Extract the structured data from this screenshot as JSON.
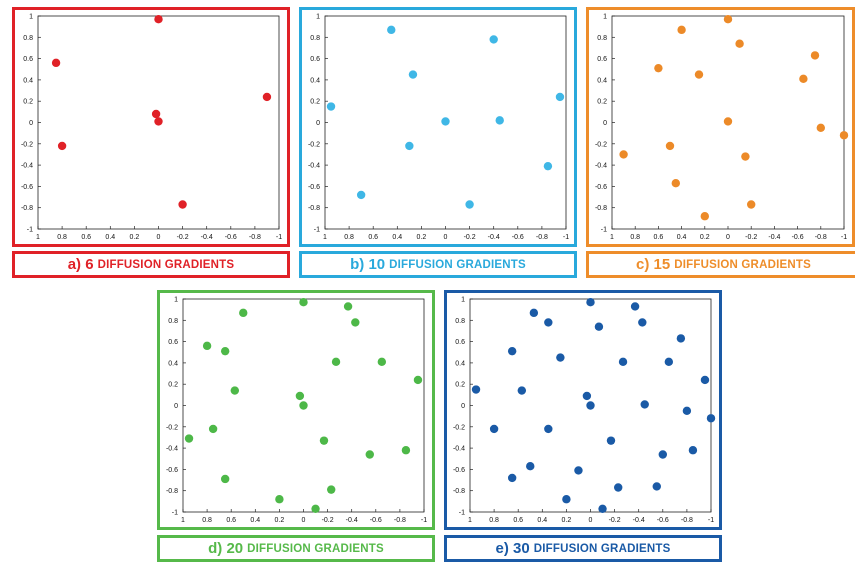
{
  "chart_data": [
    {
      "type": "scatter",
      "caption_prefix": "a) 6",
      "caption_suffix": "DIFFUSION GRADIENTS",
      "color": "#e02127",
      "frame_color": "#e02127",
      "caption_color": "#e02127",
      "x_ticks": [
        "1",
        "0.8",
        "0.6",
        "0.4",
        "0.2",
        "0",
        "-0.2",
        "-0.4",
        "-0.6",
        "-0.8",
        "-1"
      ],
      "y_ticks": [
        "1",
        "0.8",
        "0.6",
        "0.4",
        "0.2",
        "0",
        "-0.2",
        "-0.4",
        "-0.6",
        "-0.8",
        "-1"
      ],
      "xlim": [
        1,
        -1
      ],
      "ylim": [
        -1,
        1
      ],
      "points": [
        {
          "x": 0.0,
          "y": 0.97
        },
        {
          "x": 0.85,
          "y": 0.56
        },
        {
          "x": -0.9,
          "y": 0.24
        },
        {
          "x": 0.02,
          "y": 0.08
        },
        {
          "x": 0.0,
          "y": 0.01
        },
        {
          "x": 0.8,
          "y": -0.22
        },
        {
          "x": -0.2,
          "y": -0.77
        }
      ]
    },
    {
      "type": "scatter",
      "caption_prefix": "b) 10",
      "caption_suffix": "DIFFUSION GRADIENTS",
      "color": "#3fb7e6",
      "frame_color": "#29a9dc",
      "caption_color": "#29a9dc",
      "x_ticks": [
        "1",
        "0.8",
        "0.6",
        "0.4",
        "0.2",
        "0",
        "-0.2",
        "-0.4",
        "-0.6",
        "-0.8",
        "-1"
      ],
      "y_ticks": [
        "1",
        "0.8",
        "0.6",
        "0.4",
        "0.2",
        "0",
        "-0.2",
        "-0.4",
        "-0.6",
        "-0.8",
        "-1"
      ],
      "xlim": [
        1,
        -1
      ],
      "ylim": [
        -1,
        1
      ],
      "points": [
        {
          "x": 0.45,
          "y": 0.87
        },
        {
          "x": -0.4,
          "y": 0.78
        },
        {
          "x": 0.27,
          "y": 0.45
        },
        {
          "x": -0.95,
          "y": 0.24
        },
        {
          "x": 0.95,
          "y": 0.15
        },
        {
          "x": 0.0,
          "y": 0.01
        },
        {
          "x": -0.45,
          "y": 0.02
        },
        {
          "x": 0.3,
          "y": -0.22
        },
        {
          "x": -0.85,
          "y": -0.41
        },
        {
          "x": 0.7,
          "y": -0.68
        },
        {
          "x": -0.2,
          "y": -0.77
        }
      ]
    },
    {
      "type": "scatter",
      "caption_prefix": "c) 15",
      "caption_suffix": "DIFFUSION GRADIENTS",
      "color": "#ec8a28",
      "frame_color": "#ee8d2a",
      "caption_color": "#ee8d2a",
      "x_ticks": [
        "1",
        "0.8",
        "0.6",
        "0.4",
        "0.2",
        "0",
        "-0.2",
        "-0.4",
        "-0.6",
        "-0.8",
        "-1"
      ],
      "y_ticks": [
        "1",
        "0.8",
        "0.6",
        "0.4",
        "0.2",
        "0",
        "-0.2",
        "-0.4",
        "-0.6",
        "-0.8",
        "-1"
      ],
      "xlim": [
        1,
        -1
      ],
      "ylim": [
        -1,
        1
      ],
      "points": [
        {
          "x": 0.0,
          "y": 0.97
        },
        {
          "x": 0.4,
          "y": 0.87
        },
        {
          "x": -0.1,
          "y": 0.74
        },
        {
          "x": -0.75,
          "y": 0.63
        },
        {
          "x": 0.6,
          "y": 0.51
        },
        {
          "x": 0.25,
          "y": 0.45
        },
        {
          "x": -0.65,
          "y": 0.41
        },
        {
          "x": 0.0,
          "y": 0.01
        },
        {
          "x": -0.8,
          "y": -0.05
        },
        {
          "x": -1.0,
          "y": -0.12
        },
        {
          "x": 0.9,
          "y": -0.3
        },
        {
          "x": 0.5,
          "y": -0.22
        },
        {
          "x": -0.15,
          "y": -0.32
        },
        {
          "x": 0.45,
          "y": -0.57
        },
        {
          "x": -0.2,
          "y": -0.77
        },
        {
          "x": 0.2,
          "y": -0.88
        }
      ]
    },
    {
      "type": "scatter",
      "caption_prefix": "d) 20",
      "caption_suffix": "DIFFUSION GRADIENTS",
      "color": "#4db848",
      "frame_color": "#56b94a",
      "caption_color": "#56b94a",
      "x_ticks": [
        "1",
        "0.8",
        "0.6",
        "0.4",
        "0.2",
        "0",
        "-0.2",
        "-0.4",
        "-0.6",
        "-0.8",
        "-1"
      ],
      "y_ticks": [
        "1",
        "0.8",
        "0.6",
        "0.4",
        "0.2",
        "0",
        "-0.2",
        "-0.4",
        "-0.6",
        "-0.8",
        "-1"
      ],
      "xlim": [
        1,
        -1
      ],
      "ylim": [
        -1,
        1
      ],
      "points": [
        {
          "x": 0.0,
          "y": 0.97
        },
        {
          "x": -0.37,
          "y": 0.93
        },
        {
          "x": 0.5,
          "y": 0.87
        },
        {
          "x": -0.43,
          "y": 0.78
        },
        {
          "x": 0.8,
          "y": 0.56
        },
        {
          "x": 0.65,
          "y": 0.51
        },
        {
          "x": -0.27,
          "y": 0.41
        },
        {
          "x": -0.65,
          "y": 0.41
        },
        {
          "x": -0.95,
          "y": 0.24
        },
        {
          "x": 0.57,
          "y": 0.14
        },
        {
          "x": 0.03,
          "y": 0.09
        },
        {
          "x": 0.0,
          "y": 0.0
        },
        {
          "x": 0.95,
          "y": -0.31
        },
        {
          "x": 0.75,
          "y": -0.22
        },
        {
          "x": -0.17,
          "y": -0.33
        },
        {
          "x": -0.55,
          "y": -0.46
        },
        {
          "x": -0.85,
          "y": -0.42
        },
        {
          "x": 0.65,
          "y": -0.69
        },
        {
          "x": -0.23,
          "y": -0.79
        },
        {
          "x": 0.2,
          "y": -0.88
        },
        {
          "x": -0.1,
          "y": -0.97
        }
      ]
    },
    {
      "type": "scatter",
      "caption_prefix": "e) 30",
      "caption_suffix": "DIFFUSION GRADIENTS",
      "color": "#1a5aa6",
      "frame_color": "#1a5aa6",
      "caption_color": "#1a5aa6",
      "x_ticks": [
        "1",
        "0.8",
        "0.6",
        "0.4",
        "0.2",
        "0",
        "-0.2",
        "-0.4",
        "-0.6",
        "-0.8",
        "-1"
      ],
      "y_ticks": [
        "1",
        "0.8",
        "0.6",
        "0.4",
        "0.2",
        "0",
        "-0.2",
        "-0.4",
        "-0.6",
        "-0.8",
        "-1"
      ],
      "xlim": [
        1,
        -1
      ],
      "ylim": [
        -1,
        1
      ],
      "points": [
        {
          "x": 0.0,
          "y": 0.97
        },
        {
          "x": -0.37,
          "y": 0.93
        },
        {
          "x": 0.47,
          "y": 0.87
        },
        {
          "x": 0.35,
          "y": 0.78
        },
        {
          "x": -0.43,
          "y": 0.78
        },
        {
          "x": -0.07,
          "y": 0.74
        },
        {
          "x": -0.75,
          "y": 0.63
        },
        {
          "x": 0.65,
          "y": 0.51
        },
        {
          "x": 0.25,
          "y": 0.45
        },
        {
          "x": -0.27,
          "y": 0.41
        },
        {
          "x": -0.65,
          "y": 0.41
        },
        {
          "x": -0.95,
          "y": 0.24
        },
        {
          "x": 0.95,
          "y": 0.15
        },
        {
          "x": 0.57,
          "y": 0.14
        },
        {
          "x": 0.03,
          "y": 0.09
        },
        {
          "x": 0.0,
          "y": 0.0
        },
        {
          "x": -0.45,
          "y": 0.01
        },
        {
          "x": -0.8,
          "y": -0.05
        },
        {
          "x": -1.0,
          "y": -0.12
        },
        {
          "x": 0.8,
          "y": -0.22
        },
        {
          "x": 0.35,
          "y": -0.22
        },
        {
          "x": -0.17,
          "y": -0.33
        },
        {
          "x": -0.6,
          "y": -0.46
        },
        {
          "x": -0.85,
          "y": -0.42
        },
        {
          "x": 0.5,
          "y": -0.57
        },
        {
          "x": 0.1,
          "y": -0.61
        },
        {
          "x": 0.65,
          "y": -0.68
        },
        {
          "x": -0.23,
          "y": -0.77
        },
        {
          "x": -0.55,
          "y": -0.76
        },
        {
          "x": 0.2,
          "y": -0.88
        },
        {
          "x": -0.1,
          "y": -0.97
        }
      ]
    }
  ]
}
